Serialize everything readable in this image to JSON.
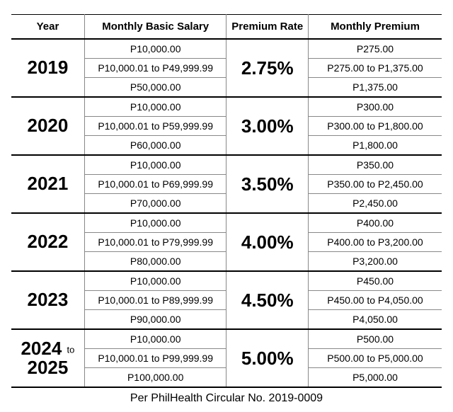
{
  "columns": [
    "Year",
    "Monthly Basic Salary",
    "Premium Rate",
    "Monthly Premium"
  ],
  "groups": [
    {
      "year_html": "2019",
      "rate": "2.75%",
      "rows": [
        {
          "salary": "P10,000.00",
          "premium": "P275.00"
        },
        {
          "salary": "P10,000.01 to P49,999.99",
          "premium": "P275.00 to P1,375.00"
        },
        {
          "salary": "P50,000.00",
          "premium": "P1,375.00"
        }
      ]
    },
    {
      "year_html": "2020",
      "rate": "3.00%",
      "rows": [
        {
          "salary": "P10,000.00",
          "premium": "P300.00"
        },
        {
          "salary": "P10,000.01 to P59,999.99",
          "premium": "P300.00 to P1,800.00"
        },
        {
          "salary": "P60,000.00",
          "premium": "P1,800.00"
        }
      ]
    },
    {
      "year_html": "2021",
      "rate": "3.50%",
      "rows": [
        {
          "salary": "P10,000.00",
          "premium": "P350.00"
        },
        {
          "salary": "P10,000.01 to P69,999.99",
          "premium": "P350.00 to P2,450.00"
        },
        {
          "salary": "P70,000.00",
          "premium": "P2,450.00"
        }
      ]
    },
    {
      "year_html": "2022",
      "rate": "4.00%",
      "rows": [
        {
          "salary": "P10,000.00",
          "premium": "P400.00"
        },
        {
          "salary": "P10,000.01 to P79,999.99",
          "premium": "P400.00 to P3,200.00"
        },
        {
          "salary": "P80,000.00",
          "premium": "P3,200.00"
        }
      ]
    },
    {
      "year_html": "2023",
      "rate": "4.50%",
      "rows": [
        {
          "salary": "P10,000.00",
          "premium": "P450.00"
        },
        {
          "salary": "P10,000.01 to P89,999.99",
          "premium": "P450.00 to P4,050.00"
        },
        {
          "salary": "P90,000.00",
          "premium": "P4,050.00"
        }
      ]
    },
    {
      "year_html": "2024 <span class=\"to\">to</span><br>2025",
      "rate": "5.00%",
      "rows": [
        {
          "salary": "P10,000.00",
          "premium": "P500.00"
        },
        {
          "salary": "P10,000.01 to P99,999.99",
          "premium": "P500.00 to P5,000.00"
        },
        {
          "salary": "P100,000.00",
          "premium": "P5,000.00"
        }
      ]
    }
  ],
  "footnote": "Per PhilHealth Circular No. 2019-0009"
}
